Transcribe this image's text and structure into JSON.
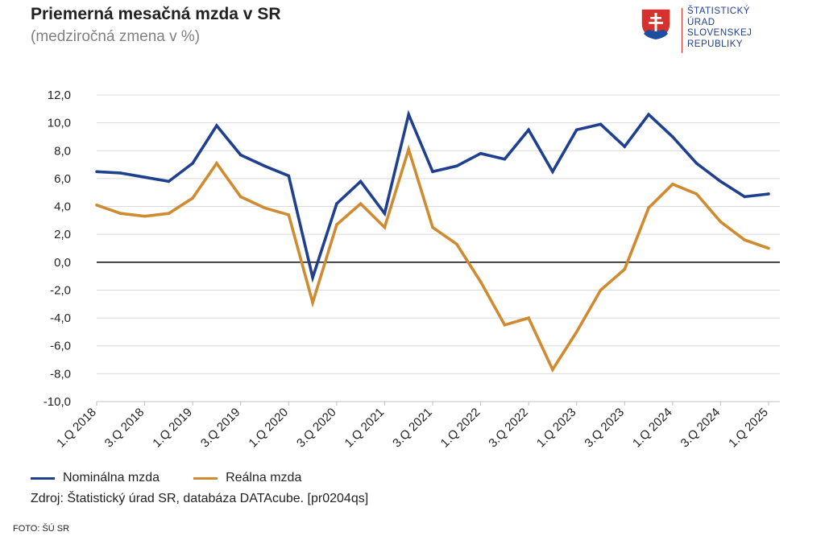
{
  "header": {
    "title": "Priemerná mesačná mzda v SR",
    "subtitle": "(medziročná zmena v %)"
  },
  "logo": {
    "icon": "slovak-coat-of-arms-icon",
    "lines": [
      "ŠTATISTICKÝ",
      "ÚRAD",
      "SLOVENSKEJ",
      "REPUBLIKY"
    ]
  },
  "legend": {
    "items": [
      {
        "label": "Nominálna mzda",
        "color": "#1f3f8f"
      },
      {
        "label": "Reálna mzda",
        "color": "#d08a30"
      }
    ]
  },
  "source": "Zdroj: Štatistický úrad SR, databáza DATAcube. [pr0204qs]",
  "foto": "FOTO: ŠÚ SR",
  "chart_data": {
    "type": "line",
    "title": "Priemerná mesačná mzda v SR",
    "subtitle": "(medziročná zmena v %)",
    "ylim": [
      -10,
      12
    ],
    "yticks": [
      -10,
      -8,
      -6,
      -4,
      -2,
      0,
      2,
      4,
      6,
      8,
      10,
      12
    ],
    "ytick_labels": [
      "-10,0",
      "-8,0",
      "-6,0",
      "-4,0",
      "-2,0",
      "0,0",
      "2,0",
      "4,0",
      "6,0",
      "8,0",
      "10,0",
      "12,0"
    ],
    "grid": true,
    "legend_position": "bottom-left",
    "categories": [
      "1.Q 2018",
      "2.Q 2018",
      "3.Q 2018",
      "4.Q 2018",
      "1.Q 2019",
      "2.Q 2019",
      "3.Q 2019",
      "4.Q 2019",
      "1.Q 2020",
      "2.Q 2020",
      "3.Q 2020",
      "4.Q 2020",
      "1.Q 2021",
      "2.Q 2021",
      "3.Q 2021",
      "4.Q 2021",
      "1.Q 2022",
      "2.Q 2022",
      "3.Q 2022",
      "4.Q 2022",
      "1.Q 2023",
      "2.Q 2023",
      "3.Q 2023",
      "4.Q 2023",
      "1.Q 2024",
      "2.Q 2024",
      "3.Q 2024",
      "4.Q 2024",
      "1.Q 2025"
    ],
    "tick_labels": [
      "1.Q 2018",
      "3.Q 2018",
      "1.Q 2019",
      "3.Q 2019",
      "1.Q 2020",
      "3.Q 2020",
      "1.Q 2021",
      "3.Q 2021",
      "1.Q 2022",
      "3.Q 2022",
      "1.Q 2023",
      "3.Q 2023",
      "1.Q 2024",
      "3.Q 2024",
      "1.Q 2025"
    ],
    "series": [
      {
        "name": "Nominálna mzda",
        "color": "#1f3f8f",
        "values": [
          6.5,
          6.4,
          6.1,
          5.8,
          7.1,
          9.8,
          7.7,
          6.9,
          6.2,
          -1.1,
          4.2,
          5.8,
          3.5,
          10.6,
          6.5,
          6.9,
          7.8,
          7.4,
          9.5,
          6.5,
          9.5,
          9.9,
          8.3,
          10.6,
          9.0,
          7.1,
          5.8,
          4.7,
          4.9
        ]
      },
      {
        "name": "Reálna mzda",
        "color": "#d08a30",
        "values": [
          4.1,
          3.5,
          3.3,
          3.5,
          4.6,
          7.1,
          4.7,
          3.9,
          3.4,
          -2.9,
          2.7,
          4.2,
          2.5,
          8.1,
          2.5,
          1.3,
          -1.4,
          -4.5,
          -4.0,
          -7.7,
          -5.0,
          -2.0,
          -0.5,
          3.9,
          5.6,
          4.9,
          2.9,
          1.6,
          1.0
        ]
      }
    ]
  }
}
